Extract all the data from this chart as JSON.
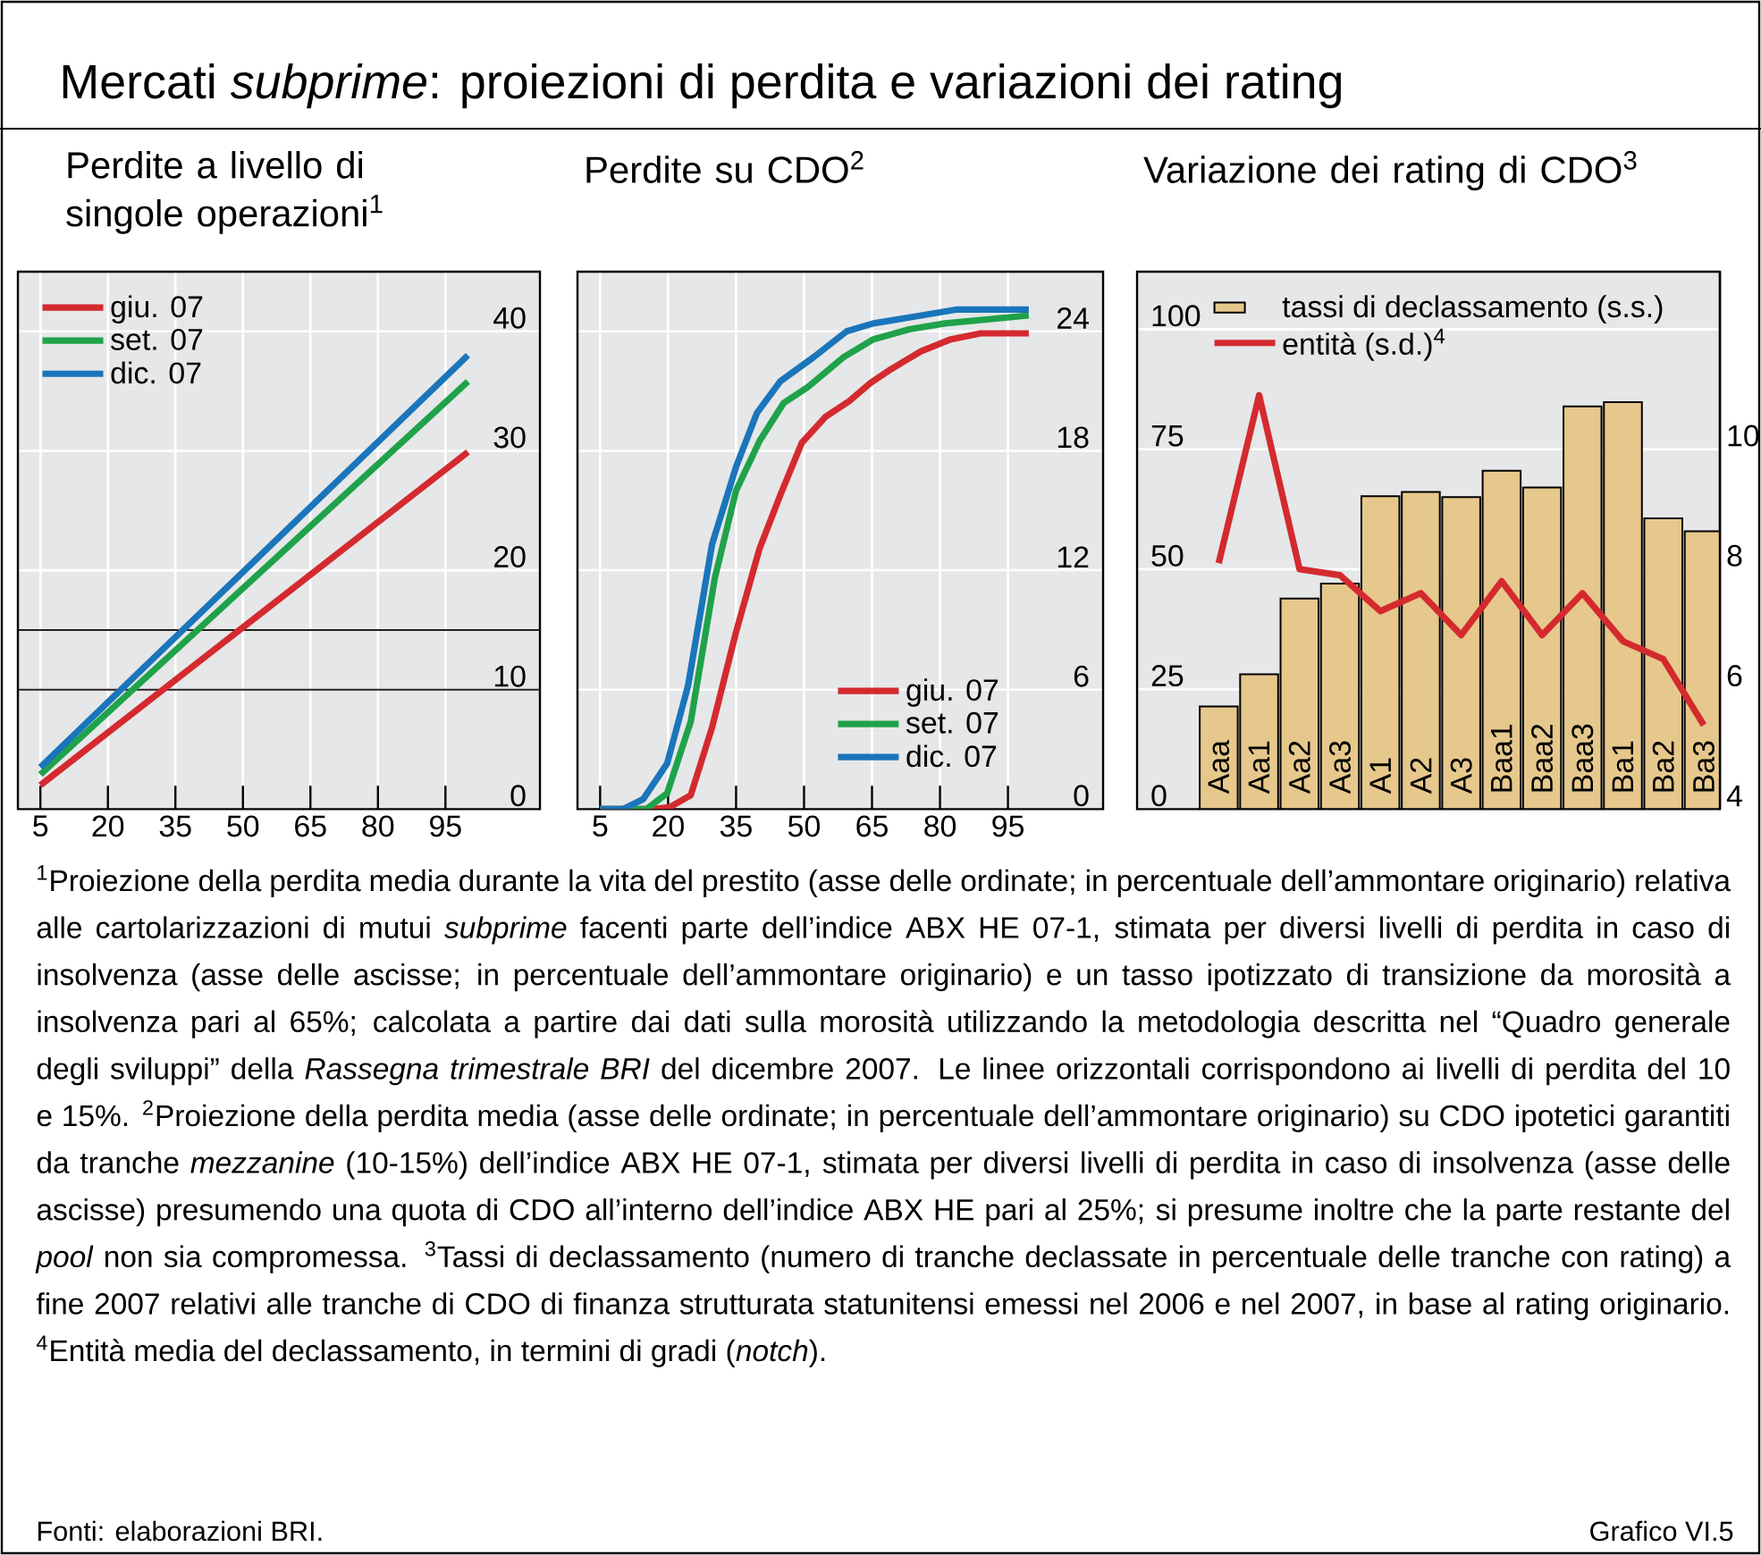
{
  "chart_data": [
    {
      "type": "other",
      "title": "Mercati *subprime*: proiezioni di perdita e variazioni dei rating",
      "annotations": [
        "$^{1}$Proiezione della perdita media durante la vita del prestito (asse delle ordinate; in percentuale dell’ammontare originario) relativa alle cartolarizzazioni di mutui *subprime* facenti parte dell’indice ABX HE 07-1, stimata per diversi livelli di perdita in caso di insolvenza (asse delle ascisse; in percentuale dell’ammontare originario) e un tasso ipotizzato di transizione da morosità a insolvenza pari al 65%; calcolata a partire dai dati sulla morosità utilizzando la metodologia descritta nel “Quadro generale degli sviluppi” della *Rassegna trimestrale BRI* del dicembre 2007. Le linee orizzontali corrispondono ai livelli di perdita del 10 e 15%. $^{2}$Proiezione della perdita media (asse delle ordinate; in percentuale dell’ammontare originario) su CDO ipotetici garantiti da tranche *mezzanine* (10-15%) dell’indice ABX HE 07-1, stimata per diversi livelli di perdita in caso di insolvenza (asse delle ascisse) presumendo una quota di CDO all’interno dell’indice ABX HE pari al 25%; si presume inoltre che la parte restante del *pool* non sia compromessa. $^{3}$Tassi di declassamento (numero di tranche declassate in percentuale delle tranche con rating) a fine 2007 relativi alle tranche di CDO di finanza strutturata statunitensi emessi nel 2006 e nel 2007, in base al rating originario. $^{4}$Entità media del declassamento, in termini di gradi (*notch*).",
        "Fonti: elaborazioni BRI.",
        "Grafico VI.5"
      ]
    },
    {
      "type": "line",
      "title": "Perdite a livello di singole operazioni$^{1}$",
      "xlim": [
        0,
        116
      ],
      "xticks": [
        5,
        20,
        35,
        50,
        65,
        80,
        95
      ],
      "ylim": [
        0,
        45
      ],
      "yticks": [
        0,
        10,
        20,
        30,
        40
      ],
      "grid": true,
      "legend": "top left",
      "ref_lines": [
        {
          "axis": "y",
          "value": 10,
          "color": "#231f20"
        },
        {
          "axis": "y",
          "value": 15,
          "color": "#231f20"
        }
      ],
      "series": [
        {
          "name": "giu. 07",
          "color": "#d42a2f",
          "x": [
            5,
            100
          ],
          "values": [
            2.0,
            29.9
          ]
        },
        {
          "name": "set. 07",
          "color": "#1fa24a",
          "x": [
            5,
            100
          ],
          "values": [
            2.9,
            35.8
          ]
        },
        {
          "name": "dic. 07",
          "color": "#1a75bb",
          "x": [
            5,
            100
          ],
          "values": [
            3.5,
            38.0
          ]
        }
      ]
    },
    {
      "type": "line",
      "title": "Perdite su CDO$^{2}$",
      "xlim": [
        0,
        116
      ],
      "xticks": [
        5,
        20,
        35,
        50,
        65,
        80,
        95
      ],
      "ylim": [
        0,
        27
      ],
      "yticks": [
        0,
        6,
        12,
        18,
        24
      ],
      "grid": true,
      "legend": "bottom right",
      "series": [
        {
          "name": "giu. 07",
          "color": "#d42a2f",
          "x": [
            5,
            17,
            20.4,
            25,
            29.7,
            35,
            40.2,
            44.8,
            49.5,
            54.7,
            60,
            64.6,
            69.2,
            75.8,
            82.4,
            89,
            99.6
          ],
          "values": [
            0,
            0,
            0.1,
            0.7,
            4.1,
            8.9,
            13.1,
            15.8,
            18.4,
            19.7,
            20.5,
            21.4,
            22.1,
            23.0,
            23.6,
            23.9,
            23.9
          ]
        },
        {
          "name": "set. 07",
          "color": "#1fa24a",
          "x": [
            5,
            15.2,
            19.8,
            25,
            30.3,
            35,
            40.2,
            45.5,
            50.8,
            58.7,
            65.3,
            73.2,
            81.1,
            99.6
          ],
          "values": [
            0,
            0,
            0.8,
            4.4,
            11.6,
            16.0,
            18.5,
            20.4,
            21.2,
            22.7,
            23.6,
            24.1,
            24.4,
            24.8
          ]
        },
        {
          "name": "dic. 07",
          "color": "#1a75bb",
          "x": [
            5,
            10,
            14.5,
            19.8,
            24.4,
            29.7,
            35,
            39.6,
            44.8,
            52.1,
            59.4,
            65.3,
            73.2,
            83.8,
            99.6
          ],
          "values": [
            0,
            0,
            0.5,
            2.3,
            6.2,
            13.3,
            17.2,
            19.9,
            21.5,
            22.7,
            24.0,
            24.4,
            24.7,
            25.1,
            25.1
          ]
        }
      ]
    },
    {
      "type": "bar",
      "title": "Variazione dei rating di CDO$^{3}$",
      "categories": [
        "Aaa",
        "Aa1",
        "Aa2",
        "Aa3",
        "A1",
        "A2",
        "A3",
        "Baa1",
        "Baa2",
        "Baa3",
        "Ba1",
        "Ba2",
        "Ba3"
      ],
      "ylim": [
        0,
        112
      ],
      "yticks": [
        0,
        25,
        50,
        75,
        100
      ],
      "y2lim": [
        4,
        12.96
      ],
      "y2ticks": [
        4,
        6,
        8,
        10
      ],
      "grid": "y",
      "legend": "top right",
      "series": [
        {
          "name": "tassi di declassamento (s.s.)",
          "color": "#e6c88c",
          "values": [
            21.4,
            28.1,
            43.9,
            47.0,
            65.2,
            66.1,
            65.0,
            70.5,
            67.0,
            83.9,
            84.8,
            60.6,
            57.9
          ]
        },
        {
          "name": "entità (s.d.)$^{4}$",
          "type": "line",
          "axis": "y2",
          "color": "#d42a2f",
          "values": [
            8.1,
            10.9,
            8.0,
            7.9,
            7.3,
            7.6,
            6.9,
            7.8,
            6.9,
            7.6,
            6.8,
            6.5,
            5.4
          ]
        }
      ]
    }
  ]
}
